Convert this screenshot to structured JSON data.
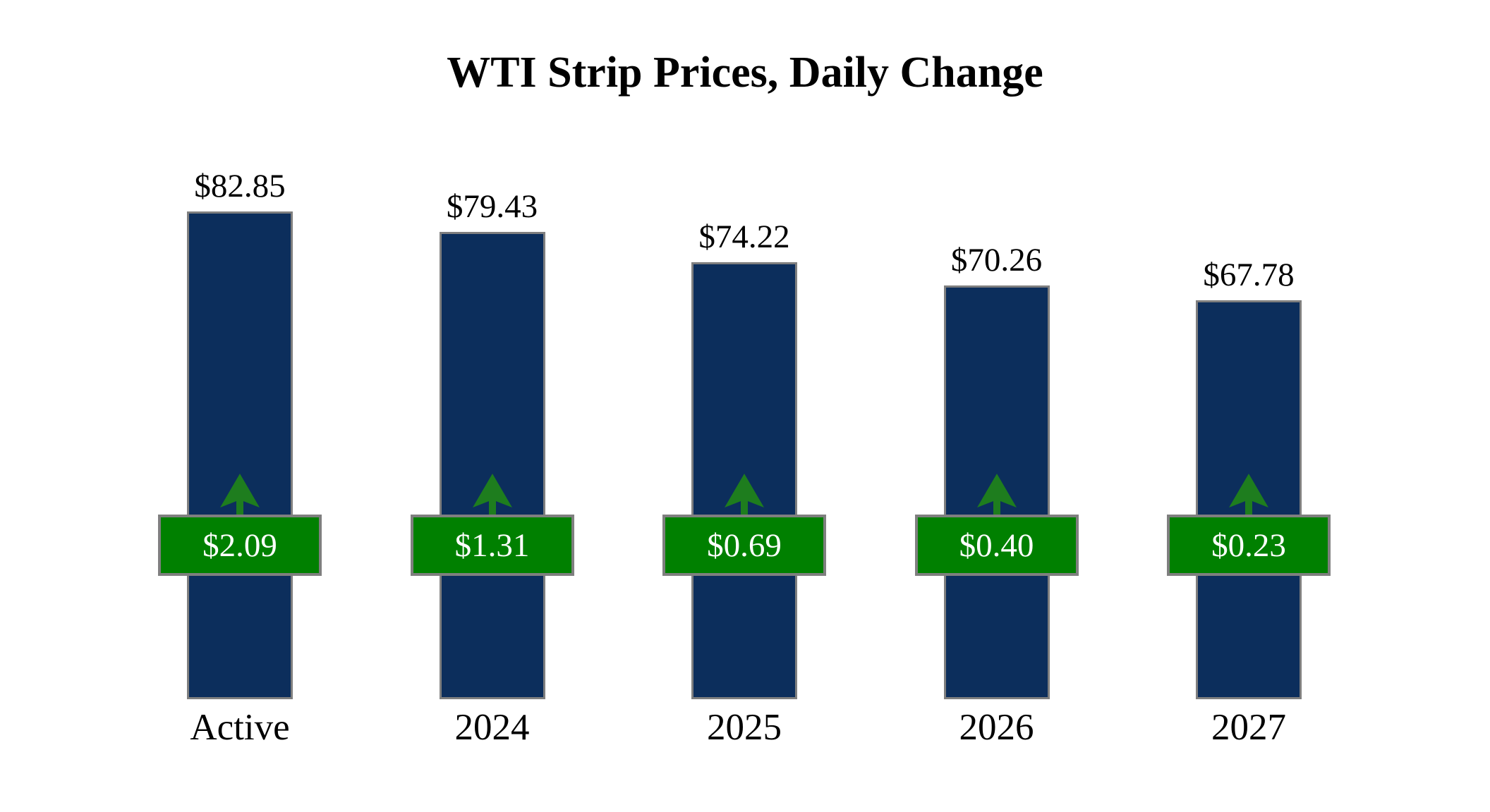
{
  "chart_data": {
    "type": "bar",
    "title": "WTI Strip Prices, Daily Change",
    "categories": [
      "Active",
      "2024",
      "2025",
      "2026",
      "2027"
    ],
    "series": [
      {
        "name": "strip_price_usd",
        "values": [
          82.85,
          79.43,
          74.22,
          70.26,
          67.78
        ]
      },
      {
        "name": "daily_change_usd",
        "values": [
          2.09,
          1.31,
          0.69,
          0.4,
          0.23
        ]
      }
    ],
    "points": [
      {
        "category": "Active",
        "price": 82.85,
        "price_label": "$82.85",
        "change": 2.09,
        "change_label": "$2.09",
        "direction": "up"
      },
      {
        "category": "2024",
        "price": 79.43,
        "price_label": "$79.43",
        "change": 1.31,
        "change_label": "$1.31",
        "direction": "up"
      },
      {
        "category": "2025",
        "price": 74.22,
        "price_label": "$74.22",
        "change": 0.69,
        "change_label": "$0.69",
        "direction": "up"
      },
      {
        "category": "2026",
        "price": 70.26,
        "price_label": "$70.26",
        "change": 0.4,
        "change_label": "$0.40",
        "direction": "up"
      },
      {
        "category": "2027",
        "price": 67.78,
        "price_label": "$67.78",
        "change": 0.23,
        "change_label": "$0.23",
        "direction": "up"
      }
    ],
    "xlabel": "",
    "ylabel": "",
    "ylim": [
      0,
      83
    ],
    "grid": false,
    "legend": "none",
    "colors": {
      "bar_fill": "#0C2E5C",
      "bar_border": "#7F7F7F",
      "badge_fill": "#008000",
      "badge_border": "#7F7F7F",
      "badge_text": "#FFFFFF",
      "arrow": "#1E7D1E",
      "label_text": "#000000",
      "background": "#FFFFFF"
    }
  }
}
